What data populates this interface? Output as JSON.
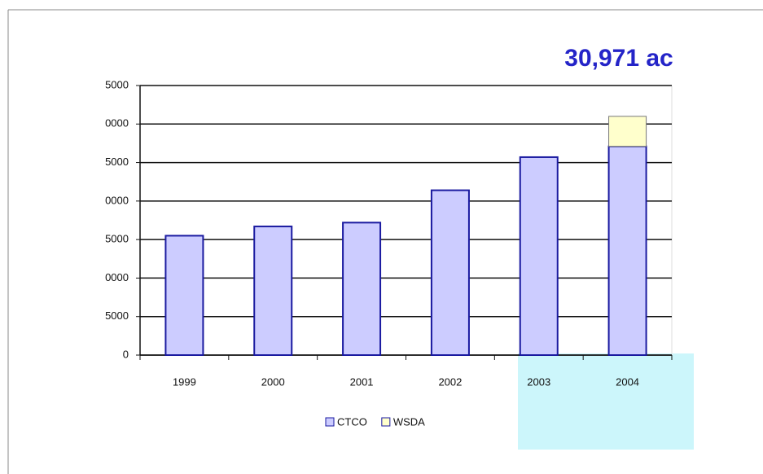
{
  "chart_data": {
    "type": "bar",
    "stacked": true,
    "annotation": "30,971 ac",
    "categories": [
      "1999",
      "2000",
      "2001",
      "2002",
      "2003",
      "2004"
    ],
    "series": [
      {
        "name": "CTCO",
        "color": "#ccccff",
        "values": [
          15500,
          16700,
          17200,
          21400,
          25700,
          27100
        ]
      },
      {
        "name": "WSDA",
        "color": "#ffffcc",
        "values": [
          0,
          0,
          0,
          0,
          0,
          3900
        ]
      }
    ],
    "ylim": [
      0,
      35000
    ],
    "yticks": [
      0,
      {
        "value": 5000,
        "label": "5000"
      },
      {
        "value": 10000,
        "label": "0000"
      },
      {
        "value": 15000,
        "label": "5000"
      },
      {
        "value": 20000,
        "label": "0000"
      },
      {
        "value": 25000,
        "label": "5000"
      },
      {
        "value": 30000,
        "label": "0000"
      },
      {
        "value": 35000,
        "label": "5000"
      }
    ],
    "grid": true
  }
}
